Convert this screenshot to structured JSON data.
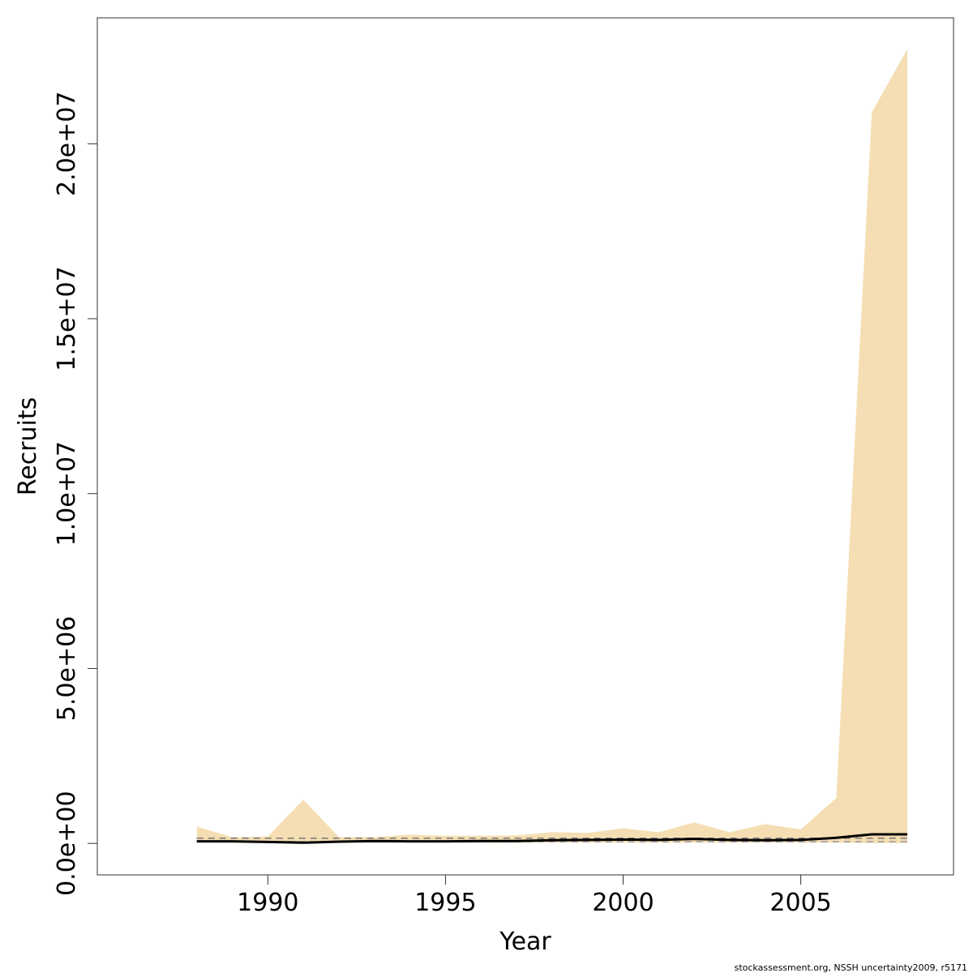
{
  "chart_data": {
    "type": "area",
    "title": "",
    "xlabel": "Year",
    "ylabel": "Recruits",
    "xlim": [
      1985.2,
      2009.3
    ],
    "ylim": [
      -900000,
      23600000
    ],
    "x_ticks": [
      1990,
      1995,
      2000,
      2005
    ],
    "x_tick_labels": [
      "1990",
      "1995",
      "2000",
      "2005"
    ],
    "y_ticks": [
      0,
      5000000,
      10000000,
      15000000,
      20000000
    ],
    "y_tick_labels": [
      "0.0e+00",
      "5.0e+06",
      "1.0e+07",
      "1.5e+07",
      "2.0e+07"
    ],
    "grid": false,
    "x": [
      1988,
      1989,
      1990,
      1991,
      1992,
      1993,
      1994,
      1995,
      1996,
      1997,
      1998,
      1999,
      2000,
      2001,
      2002,
      2003,
      2004,
      2005,
      2006,
      2007,
      2008
    ],
    "band": {
      "name": "",
      "color": "#f5deb3",
      "upper": [
        480000,
        180000,
        200000,
        1250000,
        180000,
        180000,
        250000,
        220000,
        220000,
        230000,
        320000,
        300000,
        430000,
        320000,
        600000,
        320000,
        550000,
        400000,
        1300000,
        20900000,
        22700000
      ],
      "lower": [
        30000,
        20000,
        20000,
        10000,
        20000,
        20000,
        20000,
        20000,
        20000,
        20000,
        20000,
        20000,
        20000,
        20000,
        20000,
        20000,
        20000,
        20000,
        20000,
        10000,
        10000
      ]
    },
    "series": [
      {
        "name": "",
        "color": "#000000",
        "style": "solid",
        "values": [
          60000,
          60000,
          40000,
          20000,
          50000,
          70000,
          60000,
          60000,
          70000,
          70000,
          90000,
          100000,
          110000,
          100000,
          130000,
          100000,
          90000,
          100000,
          160000,
          260000,
          260000
        ]
      }
    ],
    "reference_lines": [
      {
        "name": "",
        "y": 150000,
        "color": "#777777",
        "style": "dashed"
      },
      {
        "name": "",
        "y": 50000,
        "color": "#999999",
        "style": "dashed"
      }
    ]
  },
  "footer": {
    "text": "stockassessment.org, NSSH  uncertainty2009, r5171"
  }
}
